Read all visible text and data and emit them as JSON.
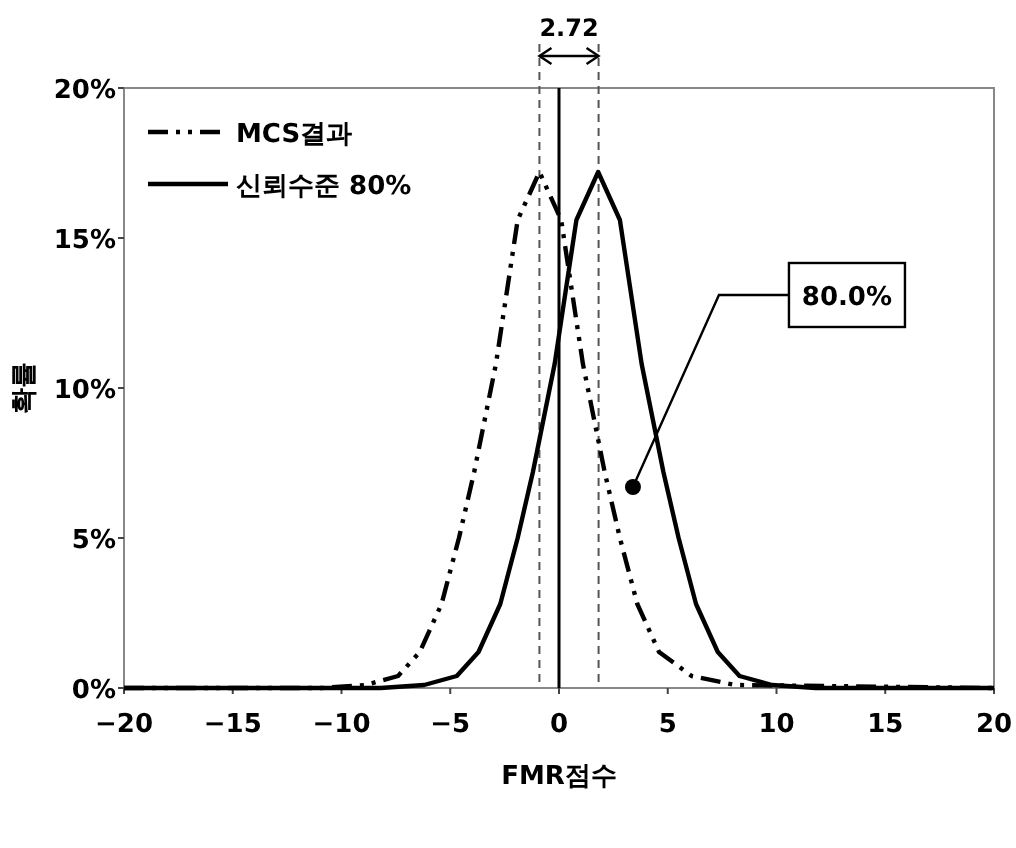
{
  "chart_data": {
    "type": "line",
    "xlabel": "FMR점수",
    "ylabel": "확률",
    "xlim": [
      -20,
      20
    ],
    "xticks": [
      -20,
      -15,
      -10,
      -5,
      0,
      5,
      10,
      15,
      20
    ],
    "ylim": [
      0,
      20
    ],
    "yticks": [
      {
        "value": 0,
        "label": "0%"
      },
      {
        "value": 5,
        "label": "5%"
      },
      {
        "value": 10,
        "label": "10%"
      },
      {
        "value": 15,
        "label": "15%"
      },
      {
        "value": 20,
        "label": "20%"
      }
    ],
    "grid": false,
    "legend": "top left",
    "marker": "none",
    "series": [
      {
        "name": "MCS결과",
        "color": "#000000",
        "line_style": "dashdot",
        "x": [
          -20,
          -10.9,
          -8.9,
          -7.4,
          -6.4,
          -5.4,
          -4.6,
          -3.9,
          -2.9,
          -1.9,
          -0.9,
          0.1,
          1.1,
          2.1,
          2.8,
          3.6,
          4.6,
          6.1,
          8.1,
          20
        ],
        "values": [
          0,
          0,
          0.1,
          0.4,
          1.2,
          2.8,
          5,
          7.2,
          10.8,
          15.6,
          17.2,
          15.6,
          10.8,
          7.2,
          5,
          2.8,
          1.2,
          0.4,
          0.1,
          0
        ]
      },
      {
        "name": "신뢰수준 80%",
        "color": "#000000",
        "line_style": "solid",
        "x": [
          -20,
          -8.2,
          -6.2,
          -4.7,
          -3.7,
          -2.7,
          -1.9,
          -1.2,
          -0.2,
          0.8,
          1.8,
          2.8,
          3.8,
          4.8,
          5.5,
          6.3,
          7.3,
          8.3,
          9.8,
          11.8,
          20
        ],
        "values": [
          0,
          0,
          0.1,
          0.4,
          1.2,
          2.8,
          5,
          7.2,
          10.8,
          15.6,
          17.2,
          15.6,
          10.8,
          7.2,
          5,
          2.8,
          1.2,
          0.4,
          0.1,
          0,
          0
        ]
      }
    ],
    "ref_lines": [
      {
        "axis": "x",
        "value": -0.9,
        "line_style": "dashed",
        "color": "#555555"
      },
      {
        "axis": "x",
        "value": 1.82,
        "line_style": "dashed",
        "color": "#555555"
      },
      {
        "axis": "x",
        "value": 0,
        "line_style": "solid",
        "color": "#000000"
      }
    ],
    "annotations": [
      "2.72",
      {
        "text": "80.0%",
        "x": 3.4,
        "y": 6.7
      }
    ]
  }
}
